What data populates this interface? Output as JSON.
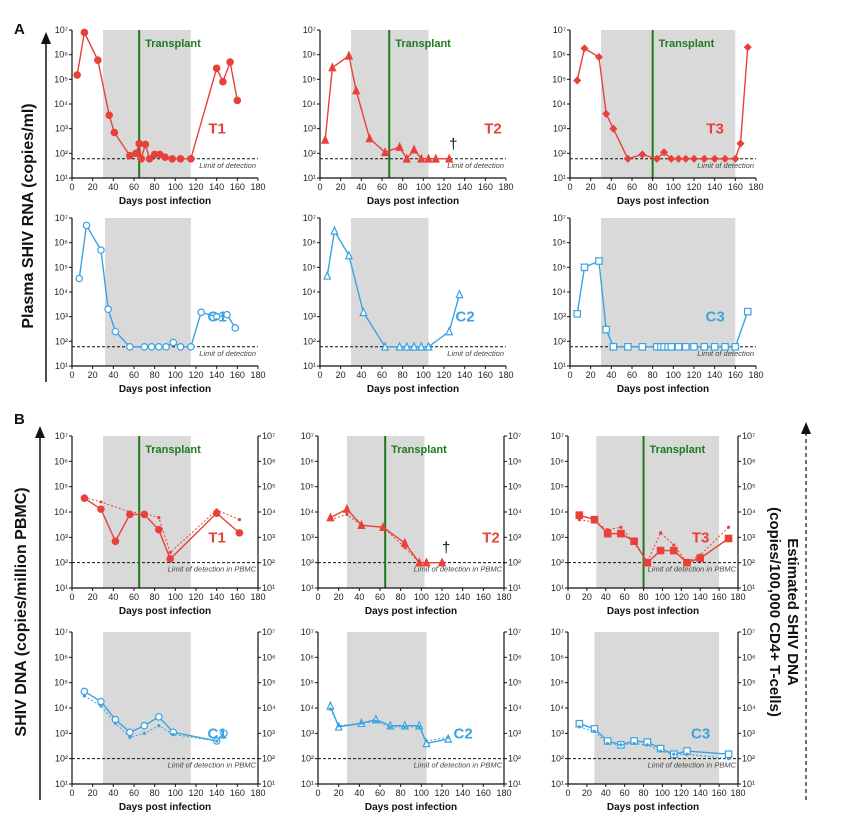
{
  "figure": {
    "panel_a_letter": "A",
    "panel_b_letter": "B",
    "ylabel_a": "Plasma SHIV RNA (copies/ml)",
    "ylabel_b": "SHIV DNA (copies/million PBMC)",
    "ylabel_b_right_line1": "Estimated SHIV DNA",
    "ylabel_b_right_line2": "(copies/100,000 CD4+ T-cells)",
    "xlabel": "Days post infection",
    "transplant_label": "Transplant",
    "lod_rna": "Limit of detection",
    "lod_dna": "Limit of detection in PBMC",
    "dagger": "†",
    "colors": {
      "treated": "#e8413a",
      "control": "#3aa3e0",
      "transplant": "#1e7a1e",
      "shade": "#d9d9d9"
    }
  },
  "chart_data": [
    {
      "id": "A-T1",
      "type": "line",
      "label": "T1",
      "group": "treated",
      "xlim": [
        0,
        180
      ],
      "ylim": [
        10,
        10000000
      ],
      "yscale": "log",
      "shade": [
        30,
        115
      ],
      "transplant": 65,
      "lod": 60,
      "lod_text": "rna",
      "dual_axis": false,
      "dagger": false,
      "marker": "circle",
      "series": [
        {
          "x": [
            5,
            12,
            25,
            36,
            41,
            56,
            62,
            65,
            67,
            71,
            75,
            80,
            85,
            90,
            97,
            105,
            115,
            140,
            146,
            153,
            160
          ],
          "y": [
            150000,
            8000000,
            600000,
            3500,
            700,
            80,
            100,
            250,
            60,
            230,
            60,
            90,
            90,
            70,
            60,
            60,
            60,
            280000,
            80000,
            500000,
            14000
          ]
        }
      ]
    },
    {
      "id": "A-T2",
      "type": "line",
      "label": "T2",
      "group": "treated",
      "xlim": [
        0,
        180
      ],
      "ylim": [
        10,
        10000000
      ],
      "yscale": "log",
      "shade": [
        30,
        105
      ],
      "transplant": 67,
      "lod": 60,
      "lod_text": "rna",
      "dual_axis": false,
      "dagger": true,
      "marker": "triangle",
      "series": [
        {
          "x": [
            5,
            12,
            28,
            35,
            48,
            63,
            77,
            84,
            91,
            98,
            105,
            112,
            125
          ],
          "y": [
            350,
            300000,
            900000,
            35000,
            400,
            110,
            180,
            60,
            140,
            60,
            60,
            60,
            60
          ]
        }
      ]
    },
    {
      "id": "A-T3",
      "type": "line",
      "label": "T3",
      "group": "treated",
      "xlim": [
        0,
        180
      ],
      "ylim": [
        10,
        10000000
      ],
      "yscale": "log",
      "shade": [
        30,
        160
      ],
      "transplant": 80,
      "lod": 60,
      "lod_text": "rna",
      "dual_axis": false,
      "dagger": false,
      "marker": "diamond",
      "series": [
        {
          "x": [
            7,
            14,
            28,
            35,
            42,
            56,
            70,
            84,
            91,
            98,
            105,
            112,
            120,
            130,
            140,
            150,
            160,
            165,
            172
          ],
          "y": [
            90000,
            1800000,
            800000,
            4000,
            1000,
            60,
            90,
            60,
            110,
            60,
            60,
            60,
            60,
            60,
            60,
            60,
            60,
            250,
            2000000
          ]
        }
      ]
    },
    {
      "id": "A-C1",
      "type": "line",
      "label": "C1",
      "group": "control",
      "xlim": [
        0,
        180
      ],
      "ylim": [
        10,
        10000000
      ],
      "yscale": "log",
      "shade": [
        32,
        115
      ],
      "transplant": null,
      "lod": 60,
      "lod_text": "rna",
      "dual_axis": false,
      "dagger": false,
      "marker": "circle-open",
      "series": [
        {
          "x": [
            7,
            14,
            28,
            35,
            42,
            56,
            70,
            77,
            84,
            91,
            98,
            105,
            115,
            125,
            140,
            150,
            158
          ],
          "y": [
            35000,
            5000000,
            500000,
            2000,
            250,
            60,
            60,
            60,
            60,
            60,
            90,
            60,
            60,
            1500,
            1000,
            1200,
            350
          ]
        }
      ]
    },
    {
      "id": "A-C2",
      "type": "line",
      "label": "C2",
      "group": "control",
      "xlim": [
        0,
        180
      ],
      "ylim": [
        10,
        10000000
      ],
      "yscale": "log",
      "shade": [
        30,
        105
      ],
      "transplant": null,
      "lod": 60,
      "lod_text": "rna",
      "dual_axis": false,
      "dagger": false,
      "marker": "triangle-open",
      "series": [
        {
          "x": [
            7,
            14,
            28,
            42,
            63,
            77,
            84,
            91,
            98,
            105,
            125,
            135
          ],
          "y": [
            45000,
            3000000,
            300000,
            1500,
            60,
            60,
            60,
            60,
            60,
            60,
            250,
            8000
          ]
        }
      ]
    },
    {
      "id": "A-C3",
      "type": "line",
      "label": "C3",
      "group": "control",
      "xlim": [
        0,
        180
      ],
      "ylim": [
        10,
        10000000
      ],
      "yscale": "log",
      "shade": [
        30,
        160
      ],
      "transplant": null,
      "lod": 60,
      "lod_text": "rna",
      "dual_axis": false,
      "dagger": false,
      "marker": "square-open",
      "series": [
        {
          "x": [
            7,
            14,
            28,
            35,
            42,
            56,
            70,
            84,
            88,
            91,
            95,
            98,
            105,
            112,
            120,
            130,
            140,
            150,
            160,
            172
          ],
          "y": [
            1300,
            100000,
            180000,
            300,
            60,
            60,
            60,
            60,
            60,
            60,
            60,
            60,
            60,
            60,
            60,
            60,
            60,
            60,
            60,
            1600
          ]
        }
      ]
    },
    {
      "id": "B-T1",
      "type": "line",
      "label": "T1",
      "group": "treated",
      "xlim": [
        0,
        180
      ],
      "ylim": [
        10,
        10000000
      ],
      "yscale": "log",
      "shade": [
        30,
        115
      ],
      "transplant": 65,
      "lod": 100,
      "lod_text": "dna",
      "dual_axis": true,
      "dagger": false,
      "marker": "circle",
      "series": [
        {
          "x": [
            12,
            28,
            42,
            56,
            70,
            84,
            95,
            140,
            162
          ],
          "y": [
            35000,
            13000,
            700,
            8000,
            8000,
            2000,
            140,
            9000,
            1500
          ]
        },
        {
          "x": [
            12,
            28,
            56,
            70,
            84,
            95,
            140,
            162
          ],
          "y": [
            38000,
            25000,
            10000,
            9000,
            6000,
            250,
            12000,
            5000
          ],
          "dotted": true
        }
      ]
    },
    {
      "id": "B-T2",
      "type": "line",
      "label": "T2",
      "group": "treated",
      "xlim": [
        0,
        180
      ],
      "ylim": [
        10,
        10000000
      ],
      "yscale": "log",
      "shade": [
        28,
        103
      ],
      "transplant": 65,
      "lod": 100,
      "lod_text": "dna",
      "dual_axis": true,
      "dagger": true,
      "marker": "triangle",
      "series": [
        {
          "x": [
            12,
            28,
            42,
            63,
            84,
            98,
            105,
            120
          ],
          "y": [
            6000,
            13000,
            3000,
            2500,
            600,
            100,
            100,
            100
          ]
        },
        {
          "x": [
            12,
            28,
            42,
            63,
            84,
            98
          ],
          "y": [
            5000,
            8000,
            3000,
            2500,
            400,
            100
          ],
          "dotted": true
        }
      ]
    },
    {
      "id": "B-T3",
      "type": "line",
      "label": "T3",
      "group": "treated",
      "xlim": [
        0,
        180
      ],
      "ylim": [
        10,
        10000000
      ],
      "yscale": "log",
      "shade": [
        30,
        160
      ],
      "transplant": 80,
      "lod": 100,
      "lod_text": "dna",
      "dual_axis": true,
      "dagger": false,
      "marker": "square",
      "series": [
        {
          "x": [
            12,
            28,
            42,
            56,
            70,
            84,
            98,
            112,
            126,
            140,
            170
          ],
          "y": [
            7500,
            5000,
            1400,
            1400,
            700,
            100,
            300,
            300,
            100,
            150,
            900
          ]
        },
        {
          "x": [
            12,
            28,
            42,
            56,
            70,
            84,
            98,
            112,
            126,
            140,
            170
          ],
          "y": [
            5000,
            4000,
            2000,
            2500,
            600,
            110,
            1500,
            500,
            100,
            200,
            2500
          ],
          "dotted": true
        }
      ]
    },
    {
      "id": "B-C1",
      "type": "line",
      "label": "C1",
      "group": "control",
      "xlim": [
        0,
        180
      ],
      "ylim": [
        10,
        10000000
      ],
      "yscale": "log",
      "shade": [
        30,
        115
      ],
      "transplant": null,
      "lod": 100,
      "lod_text": "dna",
      "dual_axis": true,
      "dagger": false,
      "marker": "circle-open",
      "series": [
        {
          "x": [
            12,
            28,
            42,
            56,
            70,
            84,
            98,
            140,
            147
          ],
          "y": [
            45000,
            18000,
            3500,
            1100,
            2000,
            4500,
            1100,
            500,
            1000
          ]
        },
        {
          "x": [
            12,
            28,
            42,
            56,
            70,
            84,
            98,
            140,
            147
          ],
          "y": [
            30000,
            12000,
            2500,
            700,
            1000,
            2000,
            900,
            500,
            700
          ],
          "dotted": true
        }
      ]
    },
    {
      "id": "B-C2",
      "type": "line",
      "label": "C2",
      "group": "control",
      "xlim": [
        0,
        180
      ],
      "ylim": [
        10,
        10000000
      ],
      "yscale": "log",
      "shade": [
        28,
        105
      ],
      "transplant": null,
      "lod": 100,
      "lod_text": "dna",
      "dual_axis": true,
      "dagger": false,
      "marker": "triangle-open",
      "series": [
        {
          "x": [
            12,
            20,
            42,
            56,
            70,
            84,
            98,
            105,
            126
          ],
          "y": [
            12000,
            1800,
            2500,
            3500,
            2000,
            2000,
            2000,
            400,
            600
          ]
        },
        {
          "x": [
            12,
            20,
            42,
            56,
            70,
            84,
            98,
            105,
            126
          ],
          "y": [
            9000,
            2000,
            2500,
            3000,
            1800,
            1800,
            1800,
            500,
            700
          ],
          "dotted": true
        }
      ]
    },
    {
      "id": "B-C3",
      "type": "line",
      "label": "C3",
      "group": "control",
      "xlim": [
        0,
        180
      ],
      "ylim": [
        10,
        10000000
      ],
      "yscale": "log",
      "shade": [
        28,
        160
      ],
      "transplant": null,
      "lod": 100,
      "lod_text": "dna",
      "dual_axis": true,
      "dagger": false,
      "marker": "square-open",
      "series": [
        {
          "x": [
            12,
            28,
            42,
            56,
            70,
            84,
            98,
            112,
            126,
            170
          ],
          "y": [
            2400,
            1500,
            500,
            350,
            500,
            450,
            250,
            150,
            200,
            150
          ]
        },
        {
          "x": [
            12,
            28,
            42,
            56,
            70,
            84,
            98,
            112,
            126,
            170
          ],
          "y": [
            1800,
            1200,
            400,
            350,
            400,
            350,
            200,
            150,
            150,
            100
          ],
          "dotted": true
        }
      ]
    }
  ]
}
